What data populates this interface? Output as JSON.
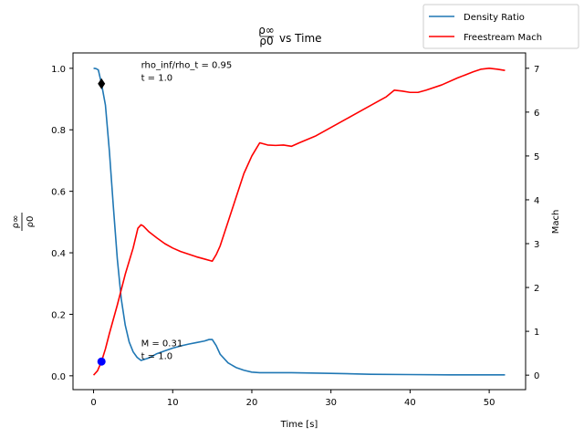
{
  "chart_data": {
    "type": "line",
    "title": "vs Time",
    "title_math": {
      "numerator": "ρ∞",
      "denominator": "ρ0"
    },
    "xlabel": "Time [s]",
    "ylabel_left_math": {
      "numerator": "ρ∞",
      "denominator": "ρ0"
    },
    "ylabel_right": "Mach",
    "xlim": [
      -2.6,
      54.6
    ],
    "ylim_left": [
      -0.045,
      1.05
    ],
    "ylim_right": [
      -0.33,
      7.35
    ],
    "x_ticks": [
      0,
      10,
      20,
      30,
      40,
      50
    ],
    "y_ticks_left": [
      0.0,
      0.2,
      0.4,
      0.6,
      0.8,
      1.0
    ],
    "y_ticks_right": [
      0,
      1,
      2,
      3,
      4,
      5,
      6,
      7
    ],
    "x_tick_labels": [
      "0",
      "10",
      "20",
      "30",
      "40",
      "50"
    ],
    "y_tick_labels_left": [
      "0.0",
      "0.2",
      "0.4",
      "0.6",
      "0.8",
      "1.0"
    ],
    "y_tick_labels_right": [
      "0",
      "1",
      "2",
      "3",
      "4",
      "5",
      "6",
      "7"
    ],
    "grid": false,
    "legend_position": "top-right, outside plot",
    "series": [
      {
        "name": "Density Ratio",
        "axis": "left",
        "color": "#1f77b4",
        "x": [
          0,
          0.3,
          0.6,
          1.0,
          1.5,
          2.0,
          2.5,
          3.0,
          3.5,
          4.0,
          4.5,
          5.0,
          5.5,
          6.0,
          7.0,
          8.0,
          9.0,
          10.0,
          11.0,
          12.0,
          13.0,
          14.0,
          14.6,
          15.0,
          15.5,
          16.0,
          17.0,
          18.0,
          19.0,
          20.0,
          21.0,
          25.0,
          30.0,
          35.0,
          40.0,
          45.0,
          50.0,
          52.0
        ],
        "y": [
          1.0,
          0.999,
          0.995,
          0.95,
          0.88,
          0.73,
          0.55,
          0.38,
          0.25,
          0.165,
          0.11,
          0.078,
          0.06,
          0.05,
          0.058,
          0.072,
          0.081,
          0.09,
          0.097,
          0.103,
          0.108,
          0.113,
          0.118,
          0.118,
          0.098,
          0.07,
          0.042,
          0.027,
          0.018,
          0.012,
          0.01,
          0.01,
          0.008,
          0.005,
          0.004,
          0.003,
          0.003,
          0.003
        ]
      },
      {
        "name": "Freestream Mach",
        "axis": "right",
        "color": "#ff0000",
        "x": [
          0,
          0.5,
          1.0,
          1.5,
          2.0,
          3.0,
          4.0,
          5.0,
          5.6,
          6.0,
          6.3,
          7.0,
          8.0,
          9.0,
          10.0,
          11.0,
          12.0,
          13.0,
          14.0,
          15.0,
          15.5,
          16.0,
          17.0,
          18.0,
          19.0,
          20.0,
          20.5,
          21.0,
          22.0,
          23.0,
          24.0,
          25.0,
          26.0,
          28.0,
          30.0,
          32.0,
          34.0,
          36.0,
          37.0,
          38.0,
          39.0,
          40.0,
          41.0,
          42.0,
          44.0,
          46.0,
          48.0,
          49.0,
          50.0,
          51.0,
          52.0
        ],
        "y": [
          0.0,
          0.1,
          0.31,
          0.6,
          0.95,
          1.6,
          2.3,
          2.9,
          3.35,
          3.43,
          3.4,
          3.27,
          3.13,
          3.0,
          2.9,
          2.82,
          2.76,
          2.7,
          2.65,
          2.6,
          2.75,
          2.95,
          3.5,
          4.05,
          4.6,
          5.0,
          5.15,
          5.3,
          5.25,
          5.24,
          5.25,
          5.22,
          5.3,
          5.45,
          5.65,
          5.85,
          6.05,
          6.25,
          6.35,
          6.5,
          6.48,
          6.45,
          6.45,
          6.5,
          6.62,
          6.78,
          6.92,
          6.98,
          7.0,
          6.98,
          6.95
        ]
      }
    ],
    "markers": [
      {
        "shape": "diamond",
        "color": "#000000",
        "axis": "left",
        "x": 1.0,
        "y": 0.95
      },
      {
        "shape": "circle",
        "color": "#0000ff",
        "axis": "right",
        "x": 1.0,
        "y": 0.31
      }
    ],
    "annotations": [
      {
        "axis": "left",
        "x": 6.0,
        "y": 0.95,
        "lines": [
          "rho_inf/rho_t = 0.95",
          "t = 1.0"
        ]
      },
      {
        "axis": "right",
        "x": 6.0,
        "y": 0.31,
        "lines": [
          "M = 0.31",
          "t = 1.0"
        ]
      }
    ]
  }
}
